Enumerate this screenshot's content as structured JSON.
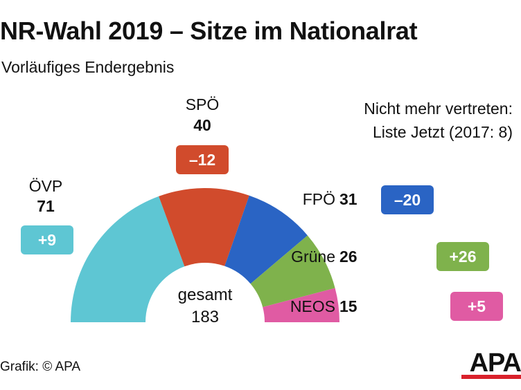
{
  "header": {
    "title": "NR-Wahl 2019 – Sitze im Nationalrat",
    "subtitle": "Vorläufiges Endergebnis"
  },
  "note": {
    "line1": "Nicht mehr vertreten:",
    "line2": "Liste Jetzt (2017: 8)"
  },
  "center": {
    "label": "gesamt",
    "total": "183"
  },
  "footer": {
    "credit": "Grafik: © APA",
    "logo": "APA"
  },
  "chart_data": {
    "type": "pie",
    "variant": "semicircle-donut",
    "total": 183,
    "total_label": "gesamt",
    "series": [
      {
        "name": "ÖVP",
        "seats": 71,
        "change": "+9",
        "color": "#5ec6d3"
      },
      {
        "name": "SPÖ",
        "seats": 40,
        "change": "–12",
        "color": "#d14b2c"
      },
      {
        "name": "FPÖ",
        "seats": 31,
        "change": "–20",
        "color": "#2a64c4"
      },
      {
        "name": "Grüne",
        "seats": 26,
        "change": "+26",
        "color": "#7fb24c"
      },
      {
        "name": "NEOS",
        "seats": 15,
        "change": "+5",
        "color": "#e05ba3"
      }
    ]
  }
}
